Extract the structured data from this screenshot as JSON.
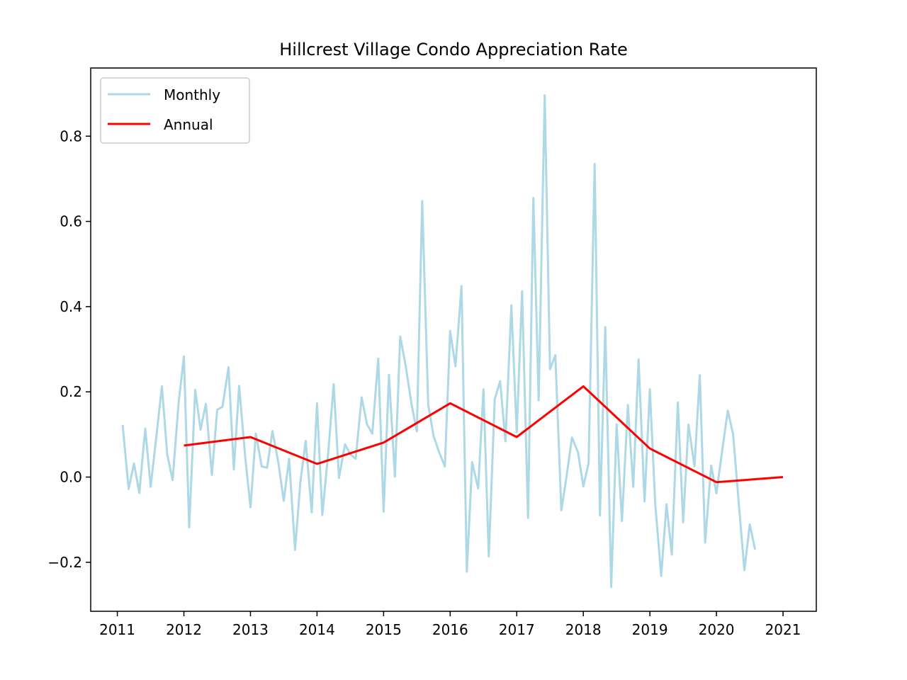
{
  "chart_data": {
    "type": "line",
    "title": "Hillcrest Village Condo Appreciation Rate",
    "xlabel": "",
    "ylabel": "",
    "xlim": [
      2010.6,
      2021.5
    ],
    "ylim": [
      -0.315,
      0.96
    ],
    "x_ticks": [
      2011,
      2012,
      2013,
      2014,
      2015,
      2016,
      2017,
      2018,
      2019,
      2020,
      2021
    ],
    "x_tick_labels": [
      "2011",
      "2012",
      "2013",
      "2014",
      "2015",
      "2016",
      "2017",
      "2018",
      "2019",
      "2020",
      "2021"
    ],
    "y_ticks": [
      -0.2,
      0.0,
      0.2,
      0.4,
      0.6,
      0.8
    ],
    "y_tick_labels": [
      "−0.2",
      "0.0",
      "0.2",
      "0.4",
      "0.6",
      "0.8"
    ],
    "grid": false,
    "legend": {
      "placement": "top-left"
    },
    "series": [
      {
        "name": "Monthly",
        "color": "#add8e6",
        "x": [
          2011.08,
          2011.17,
          2011.25,
          2011.33,
          2011.42,
          2011.5,
          2011.58,
          2011.67,
          2011.75,
          2011.83,
          2011.92,
          2012.0,
          2012.08,
          2012.17,
          2012.25,
          2012.33,
          2012.42,
          2012.5,
          2012.58,
          2012.67,
          2012.75,
          2012.83,
          2012.92,
          2013.0,
          2013.08,
          2013.17,
          2013.25,
          2013.33,
          2013.42,
          2013.5,
          2013.58,
          2013.67,
          2013.75,
          2013.83,
          2013.92,
          2014.0,
          2014.08,
          2014.17,
          2014.25,
          2014.33,
          2014.42,
          2014.5,
          2014.58,
          2014.67,
          2014.75,
          2014.83,
          2014.92,
          2015.0,
          2015.08,
          2015.17,
          2015.25,
          2015.33,
          2015.42,
          2015.5,
          2015.58,
          2015.67,
          2015.75,
          2015.83,
          2015.92,
          2016.0,
          2016.08,
          2016.17,
          2016.25,
          2016.33,
          2016.42,
          2016.5,
          2016.58,
          2016.67,
          2016.75,
          2016.83,
          2016.92,
          2017.0,
          2017.08,
          2017.17,
          2017.25,
          2017.33,
          2017.42,
          2017.5,
          2017.58,
          2017.67,
          2017.75,
          2017.83,
          2017.92,
          2018.0,
          2018.08,
          2018.17,
          2018.25,
          2018.33,
          2018.42,
          2018.5,
          2018.58,
          2018.67,
          2018.75,
          2018.83,
          2018.92,
          2019.0,
          2019.08,
          2019.17,
          2019.25,
          2019.33,
          2019.42,
          2019.5,
          2019.58,
          2019.67,
          2019.75,
          2019.83,
          2019.92,
          2020.0,
          2020.08,
          2020.17,
          2020.25,
          2020.33,
          2020.42,
          2020.5,
          2020.58
        ],
        "y": [
          0.122,
          -0.028,
          0.032,
          -0.037,
          0.114,
          -0.023,
          0.087,
          0.213,
          0.053,
          -0.007,
          0.173,
          0.283,
          -0.118,
          0.205,
          0.111,
          0.172,
          0.005,
          0.158,
          0.165,
          0.258,
          0.018,
          0.214,
          0.048,
          -0.071,
          0.102,
          0.025,
          0.022,
          0.108,
          0.033,
          -0.056,
          0.043,
          -0.171,
          -0.012,
          0.085,
          -0.083,
          0.173,
          -0.089,
          0.061,
          0.218,
          -0.002,
          0.077,
          0.053,
          0.043,
          0.187,
          0.124,
          0.102,
          0.278,
          -0.081,
          0.24,
          0.001,
          0.33,
          0.262,
          0.171,
          0.107,
          0.648,
          0.17,
          0.097,
          0.06,
          0.025,
          0.343,
          0.26,
          0.448,
          -0.222,
          0.035,
          -0.027,
          0.206,
          -0.186,
          0.183,
          0.225,
          0.084,
          0.403,
          0.105,
          0.436,
          -0.096,
          0.655,
          0.18,
          0.896,
          0.253,
          0.286,
          -0.078,
          0.003,
          0.093,
          0.058,
          -0.022,
          0.033,
          0.735,
          -0.09,
          0.352,
          -0.258,
          0.124,
          -0.103,
          0.169,
          -0.023,
          0.276,
          -0.057,
          0.206,
          -0.063,
          -0.232,
          -0.064,
          -0.182,
          0.175,
          -0.106,
          0.123,
          0.025,
          0.239,
          -0.154,
          0.027,
          -0.038,
          0.055,
          0.156,
          0.1,
          -0.051,
          -0.219,
          -0.111,
          -0.17
        ]
      },
      {
        "name": "Annual",
        "color": "#ff0000",
        "x": [
          2012,
          2013,
          2014,
          2015,
          2016,
          2017,
          2018,
          2019,
          2020,
          2021
        ],
        "y": [
          0.074,
          0.094,
          0.031,
          0.081,
          0.173,
          0.094,
          0.213,
          0.067,
          -0.012,
          0.0
        ]
      }
    ]
  }
}
